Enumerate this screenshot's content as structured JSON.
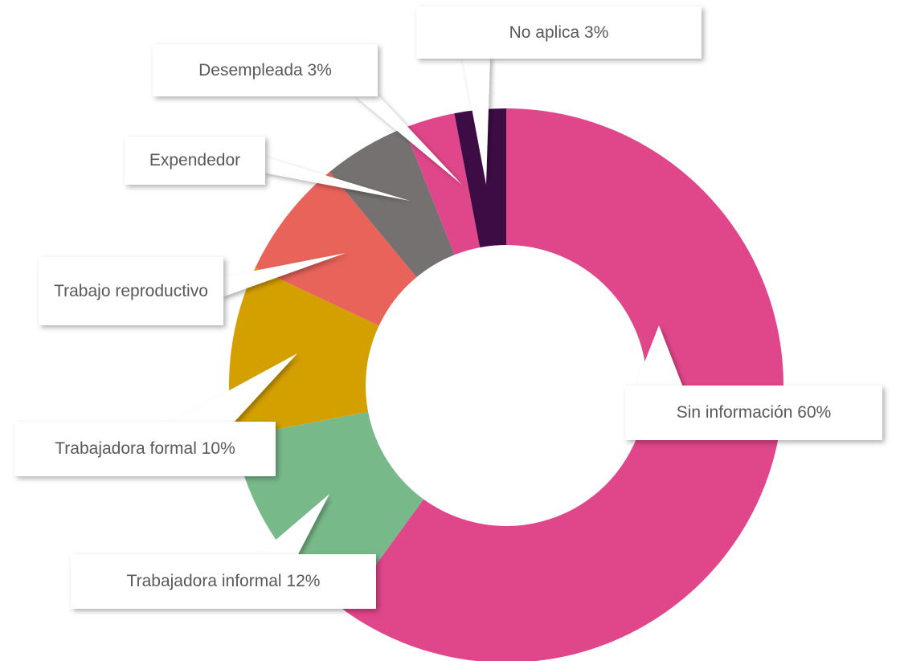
{
  "chart_data": {
    "type": "donut",
    "categories": [
      "Sin información",
      "Trabajadora informal",
      "Trabajadora formal",
      "Trabajo reproductivo",
      "Expendedor",
      "Desempleada",
      "No aplica"
    ],
    "values": [
      60,
      12,
      10,
      7,
      5,
      3,
      3
    ],
    "value_labels": [
      "60%",
      "12%",
      "10%",
      null,
      null,
      "3%",
      "3%"
    ],
    "colors": [
      "#e0468a",
      "#78b98a",
      "#d4a000",
      "#e8635a",
      "#767171",
      "#e0468a",
      "#3d0c45"
    ]
  }
}
